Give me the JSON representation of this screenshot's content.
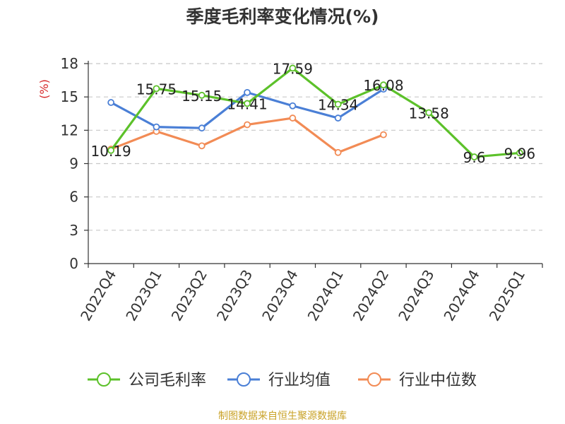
{
  "chart_data": {
    "type": "line",
    "title": "季度毛利率变化情况(%)",
    "ylabel": "(%)",
    "xlabel": "",
    "categories": [
      "2022Q4",
      "2023Q1",
      "2023Q2",
      "2023Q3",
      "2023Q4",
      "2024Q1",
      "2024Q2",
      "2024Q3",
      "2024Q4",
      "2025Q1"
    ],
    "ylim": [
      0,
      18
    ],
    "yticks": [
      0,
      3,
      6,
      9,
      12,
      15,
      18
    ],
    "grid": true,
    "legend_position": "bottom",
    "series": [
      {
        "name": "公司毛利率",
        "color": "#5cc12a",
        "values": [
          10.19,
          15.75,
          15.15,
          14.41,
          17.59,
          14.34,
          16.08,
          13.58,
          9.6,
          9.96
        ],
        "labels": [
          "10.19",
          "15.75",
          "15.15",
          "14.41",
          "17.59",
          "14.34",
          "16.08",
          "13.58",
          "9.6",
          "9.96"
        ]
      },
      {
        "name": "行业均值",
        "color": "#4a7fd6",
        "values": [
          14.5,
          12.3,
          12.2,
          15.4,
          14.2,
          13.1,
          15.7,
          null,
          null,
          null
        ]
      },
      {
        "name": "行业中位数",
        "color": "#f28b55",
        "values": [
          10.3,
          11.9,
          10.6,
          12.5,
          13.1,
          10.0,
          11.6,
          null,
          null,
          null
        ]
      }
    ]
  },
  "footer": {
    "source": "制图数据来自恒生聚源数据库"
  }
}
